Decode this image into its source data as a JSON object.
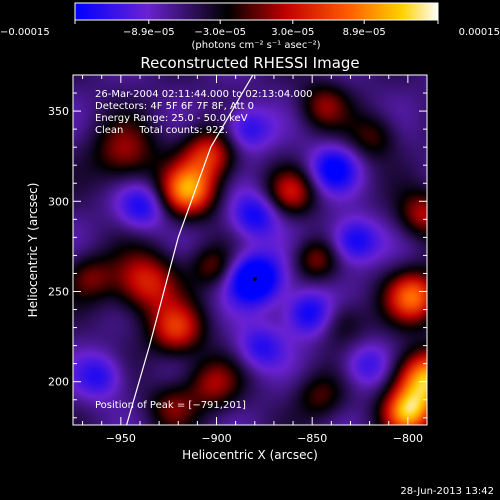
{
  "chart_data": {
    "type": "heatmap",
    "title": "Reconstructed RHESSI Image",
    "xlabel": "Heliocentric X (arcsec)",
    "ylabel": "Heliocentric Y (arcsec)",
    "xlim": [
      -975,
      -790
    ],
    "ylim": [
      176,
      370
    ],
    "x_ticks": [
      -950,
      -900,
      -850,
      -800
    ],
    "x_tick_labels": [
      "−950",
      "−900",
      "−850",
      "−800"
    ],
    "y_ticks": [
      200,
      250,
      300,
      350
    ],
    "y_tick_labels": [
      "200",
      "250",
      "300",
      "350"
    ],
    "colorbar": {
      "min": -0.00015,
      "max": 0.00015,
      "ticks": [
        -0.00015,
        -8.9e-05,
        -3e-05,
        3e-05,
        8.9e-05,
        0.00015
      ],
      "tick_labels": [
        "−0.00015",
        "−8.9e−05",
        "−3.0e−05",
        "3.0e−05",
        "8.9e−05",
        "0.00015"
      ],
      "unit": "(photons cm⁻² s⁻¹ asec⁻²)",
      "colors": [
        "#0000ff",
        "#7b22c8",
        "#000000",
        "#c00000",
        "#ff6000",
        "#ffd000",
        "#ffffff"
      ]
    },
    "annotations": [
      "26-Mar-2004 02:11:44.000 to 02:13:04.000",
      "Detectors: 4F 5F 6F 7F 8F, Att 0",
      "Energy Range: 25.0 - 50.0 keV",
      "Clean     Total counts: 922."
    ],
    "peak_label": "Position of Peak = [−791,201]",
    "peak": {
      "x": -791,
      "y": 201
    },
    "limb_curve": [
      [
        -947,
        176
      ],
      [
        -935,
        220
      ],
      [
        -920,
        280
      ],
      [
        -903,
        330
      ],
      [
        -881,
        370
      ]
    ],
    "sources": [
      {
        "x": -915,
        "y": 306,
        "amp": 1.0,
        "r": 10
      },
      {
        "x": -904,
        "y": 326,
        "amp": 0.7,
        "r": 10
      },
      {
        "x": -948,
        "y": 327,
        "amp": 0.5,
        "r": 12
      },
      {
        "x": -966,
        "y": 258,
        "amp": 0.4,
        "r": 9
      },
      {
        "x": -937,
        "y": 255,
        "amp": 0.7,
        "r": 12
      },
      {
        "x": -921,
        "y": 229,
        "amp": 0.7,
        "r": 10
      },
      {
        "x": -902,
        "y": 264,
        "amp": 0.4,
        "r": 8
      },
      {
        "x": -902,
        "y": 199,
        "amp": 0.5,
        "r": 10
      },
      {
        "x": -923,
        "y": 186,
        "amp": 0.4,
        "r": 9
      },
      {
        "x": -861,
        "y": 305,
        "amp": 0.55,
        "r": 9
      },
      {
        "x": -848,
        "y": 268,
        "amp": 0.45,
        "r": 8
      },
      {
        "x": -844,
        "y": 353,
        "amp": 0.45,
        "r": 9
      },
      {
        "x": -846,
        "y": 192,
        "amp": 0.35,
        "r": 9
      },
      {
        "x": -834,
        "y": 233,
        "amp": 0.3,
        "r": 9
      },
      {
        "x": -818,
        "y": 336,
        "amp": 0.35,
        "r": 9
      },
      {
        "x": -797,
        "y": 247,
        "amp": 0.9,
        "r": 10
      },
      {
        "x": -791,
        "y": 201,
        "amp": 1.15,
        "r": 11
      },
      {
        "x": -800,
        "y": 183,
        "amp": 1.0,
        "r": 9
      },
      {
        "x": -792,
        "y": 293,
        "amp": 0.55,
        "r": 9
      },
      {
        "x": -939,
        "y": 297,
        "amp": -0.5,
        "r": 9
      },
      {
        "x": -880,
        "y": 257,
        "amp": -0.9,
        "r": 10
      },
      {
        "x": -880,
        "y": 292,
        "amp": -0.55,
        "r": 9
      },
      {
        "x": -839,
        "y": 318,
        "amp": -0.6,
        "r": 9
      },
      {
        "x": -828,
        "y": 278,
        "amp": -0.6,
        "r": 9
      },
      {
        "x": -852,
        "y": 238,
        "amp": -0.6,
        "r": 9
      },
      {
        "x": -877,
        "y": 219,
        "amp": -0.45,
        "r": 9
      },
      {
        "x": -822,
        "y": 209,
        "amp": -0.4,
        "r": 9
      },
      {
        "x": -961,
        "y": 203,
        "amp": -0.45,
        "r": 9
      },
      {
        "x": -884,
        "y": 340,
        "amp": -0.5,
        "r": 9
      }
    ]
  },
  "footer_timestamp": "28-Jun-2013 13:42"
}
